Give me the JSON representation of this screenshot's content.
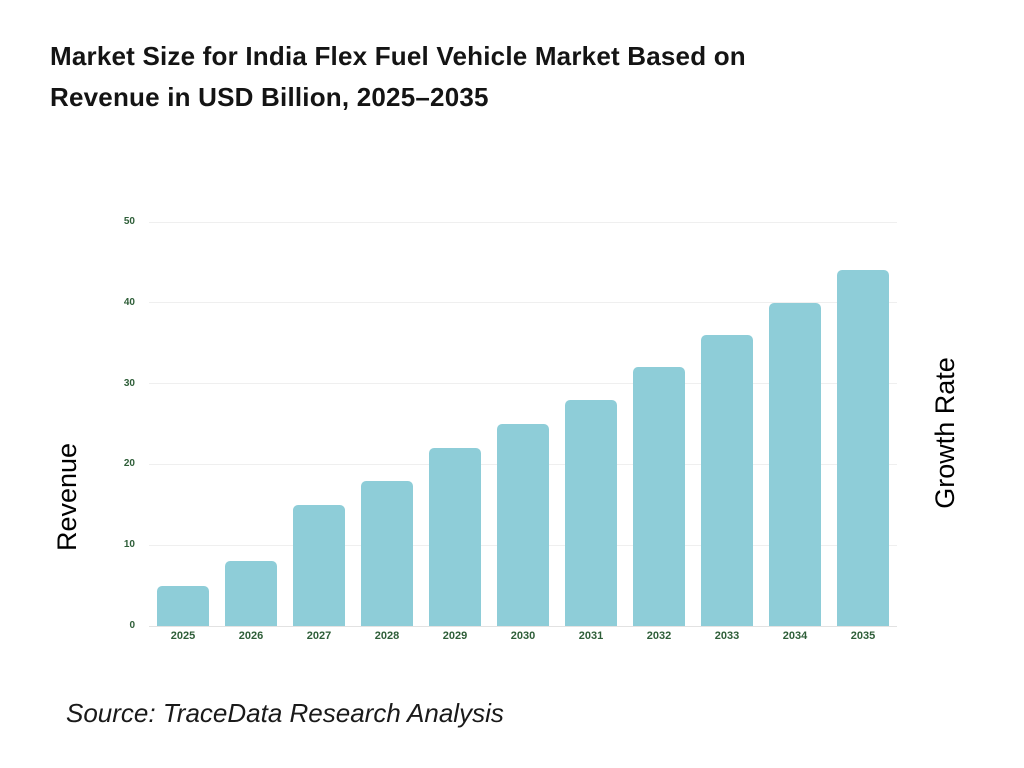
{
  "header": {
    "title_lines": [
      "Market Size for India Flex Fuel Vehicle Market Based on",
      "Revenue in USD Billion, 2025–2035"
    ]
  },
  "footer": {
    "source": "Source: TraceData Research Analysis"
  },
  "chart_data": {
    "type": "bar",
    "title": "Market Size for India Flex Fuel Vehicle Market Based on Revenue in USD Billion, 2025–2035",
    "categories": [
      "2025",
      "2026",
      "2027",
      "2028",
      "2029",
      "2030",
      "2031",
      "2032",
      "2033",
      "2034",
      "2035"
    ],
    "values": [
      5,
      8,
      15,
      18,
      22,
      25,
      28,
      32,
      36,
      40,
      44
    ],
    "xlabel": "",
    "ylabel_left": "Revenue",
    "ylabel_right": "Growth Rate",
    "y_ticks": [
      0,
      10,
      20,
      30,
      40,
      50
    ],
    "ylim": [
      0,
      50
    ],
    "grid": true,
    "legend": "none",
    "bar_color": "#8ECDD8",
    "tick_label_color": "#2E5E38"
  }
}
